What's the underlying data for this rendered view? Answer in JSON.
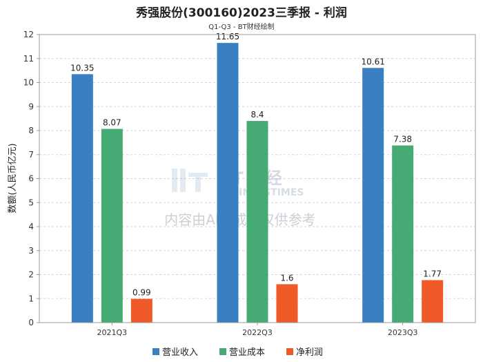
{
  "chart_data": {
    "type": "bar",
    "title": "秀强股份(300160)2023三季报 - 利润",
    "subtitle": "Q1-Q3 - BT财经绘制",
    "xlabel": "",
    "ylabel": "数额(人民币亿元)",
    "ylim": [
      0,
      12
    ],
    "yticks": [
      0,
      1,
      2,
      3,
      4,
      5,
      6,
      7,
      8,
      9,
      10,
      11,
      12
    ],
    "categories": [
      "2021Q3",
      "2022Q3",
      "2023Q3"
    ],
    "series": [
      {
        "name": "营业收入",
        "color": "#3a7fc1",
        "values": [
          10.35,
          11.65,
          10.61
        ],
        "labels": [
          "10.35",
          "11.65",
          "10.61"
        ]
      },
      {
        "name": "营业成本",
        "color": "#45aa73",
        "values": [
          8.07,
          8.4,
          7.38
        ],
        "labels": [
          "8.07",
          "8.4",
          "7.38"
        ]
      },
      {
        "name": "净利润",
        "color": "#f05a28",
        "values": [
          0.99,
          1.6,
          1.77
        ],
        "labels": [
          "0.99",
          "1.6",
          "1.77"
        ]
      }
    ],
    "grid": true,
    "legend": "bottom-center"
  },
  "watermark": {
    "brand": "BT财经",
    "brand_en": "BUSINESSTIMES",
    "notice": "内容由AI生成，仅供参考"
  }
}
